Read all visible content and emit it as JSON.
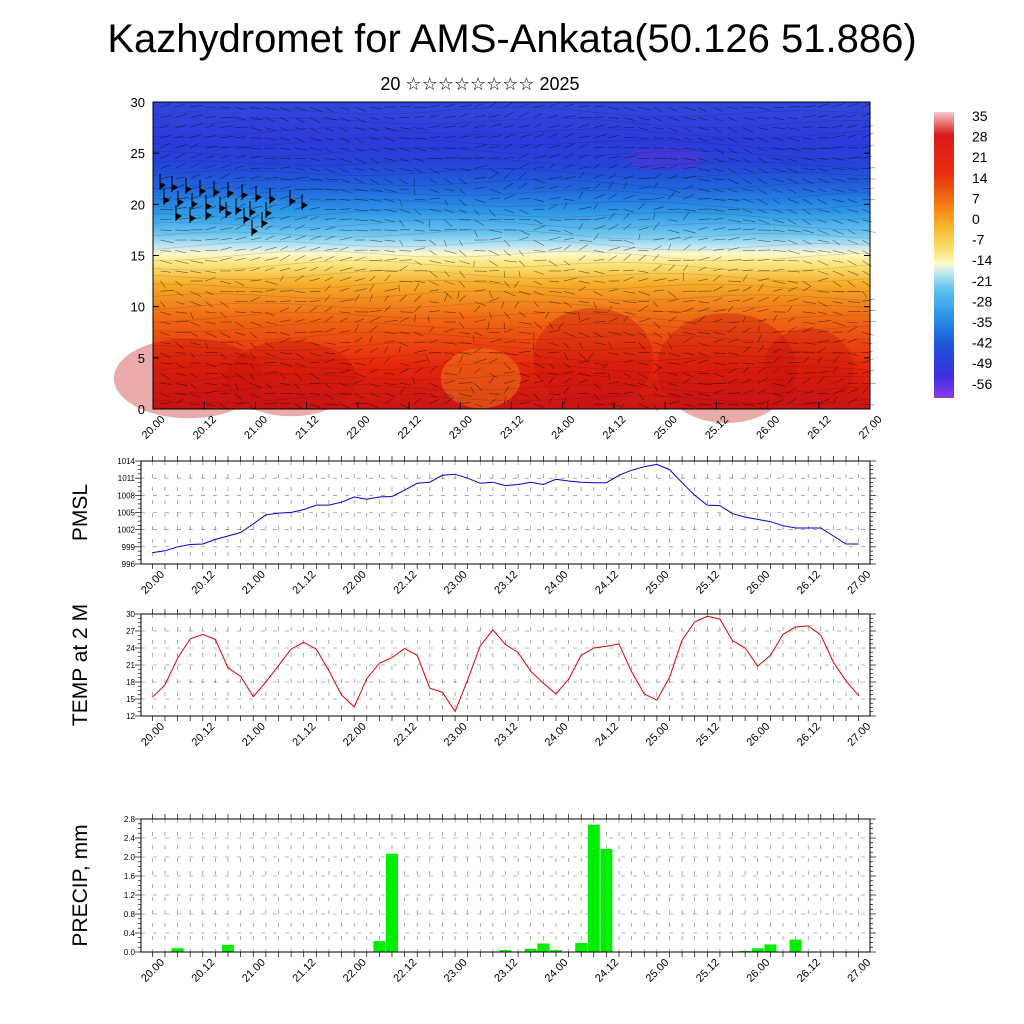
{
  "title": "Kazhydromet for AMS-Ankata(50.126 51.886)",
  "subtitle": "20 ☆☆☆☆☆☆☆☆ 2025",
  "time_labels": [
    "20.00",
    "20.12",
    "21.00",
    "21.12",
    "22.00",
    "22.12",
    "23.00",
    "23.12",
    "24.00",
    "24.12",
    "25.00",
    "25.12",
    "26.00",
    "26.12",
    "27.00"
  ],
  "chart_data": [
    {
      "id": "cross-section",
      "type": "heatmap",
      "description_of_layers": "filled contours with overlaid wind barbs",
      "ylim": [
        0,
        30
      ],
      "yticks": [
        0,
        5,
        10,
        15,
        20,
        25,
        30
      ],
      "colorbar": {
        "labels": [
          "35",
          "28",
          "21",
          "14",
          "7",
          "0",
          "-7",
          "-14",
          "-21",
          "-28",
          "-35",
          "-42",
          "-49",
          "-56"
        ],
        "colors": [
          "#f4b8b8",
          "#d31a1a",
          "#e22a10",
          "#f05a12",
          "#f59a1c",
          "#fbd646",
          "#fff6a0",
          "#c9e8f3",
          "#5ec4ee",
          "#249ae6",
          "#1d6fd9",
          "#2346d6",
          "#3a2ddb",
          "#8a3ce8"
        ]
      },
      "time_range": [
        20.0,
        27.0
      ]
    },
    {
      "id": "pmsl",
      "type": "line",
      "ylabel": "PMSL",
      "ylim": [
        996,
        1014
      ],
      "yticks": [
        "996",
        "999",
        "1002",
        "1005",
        "1008",
        "1011",
        "1014"
      ],
      "color": "#0000cc",
      "series": [
        {
          "x": [
            20.0,
            20.125,
            20.25,
            20.375,
            20.5,
            20.625,
            20.75,
            20.875,
            21.0,
            21.125,
            21.25,
            21.375,
            21.5,
            21.625,
            21.75,
            21.875,
            22.0,
            22.125,
            22.25,
            22.375,
            22.5,
            22.625,
            22.75,
            22.875,
            23.0,
            23.125,
            23.25,
            23.375,
            23.5,
            23.625,
            23.75,
            23.875,
            24.0,
            24.125,
            24.25,
            24.375,
            24.5,
            24.625,
            24.75,
            24.875,
            25.0,
            25.125,
            25.25,
            25.375,
            25.5,
            25.625,
            25.75,
            25.875,
            26.0,
            26.125,
            26.25,
            26.375,
            26.5,
            26.625,
            26.75,
            26.875,
            27.0
          ],
          "values": [
            998,
            998.3,
            999,
            999.4,
            999.5,
            1000.3,
            1000.9,
            1001.5,
            1003,
            1004.6,
            1004.9,
            1005,
            1005.5,
            1006.3,
            1006.3,
            1006.8,
            1007.7,
            1007.3,
            1007.7,
            1007.8,
            1008.9,
            1010.1,
            1010.3,
            1011.5,
            1011.7,
            1011,
            1010.1,
            1010.3,
            1009.7,
            1009.9,
            1010.3,
            1009.9,
            1010.8,
            1010.5,
            1010.3,
            1010.2,
            1010.2,
            1011.5,
            1012.4,
            1013,
            1013.4,
            1012.5,
            1010.2,
            1008,
            1006.3,
            1006.2,
            1004.8,
            1004.2,
            1003.8,
            1003.4,
            1002.7,
            1002.3,
            1002.3,
            1002.3,
            1000.9,
            999.5,
            999.5
          ]
        }
      ]
    },
    {
      "id": "temp2m",
      "type": "line",
      "ylabel": "TEMP at 2 M",
      "ylim": [
        12,
        30
      ],
      "yticks": [
        "12",
        "15",
        "18",
        "21",
        "24",
        "27",
        "30"
      ],
      "color": "#dd0000",
      "series": [
        {
          "x": [
            20.0,
            20.125,
            20.25,
            20.375,
            20.5,
            20.625,
            20.75,
            20.875,
            21.0,
            21.125,
            21.25,
            21.375,
            21.5,
            21.625,
            21.75,
            21.875,
            22.0,
            22.125,
            22.25,
            22.375,
            22.5,
            22.625,
            22.75,
            22.875,
            23.0,
            23.125,
            23.25,
            23.375,
            23.5,
            23.625,
            23.75,
            23.875,
            24.0,
            24.125,
            24.25,
            24.375,
            24.5,
            24.625,
            24.75,
            24.875,
            25.0,
            25.125,
            25.25,
            25.375,
            25.5,
            25.625,
            25.75,
            25.875,
            26.0,
            26.125,
            26.25,
            26.375,
            26.5,
            26.625,
            26.75,
            26.875,
            27.0
          ],
          "values": [
            15.3,
            17.5,
            22.2,
            25.6,
            26.4,
            25.5,
            20.5,
            19,
            15.4,
            18,
            20.9,
            23.8,
            25,
            23.8,
            20,
            15.7,
            13.6,
            18.6,
            21.3,
            22.3,
            23.9,
            22.7,
            16.9,
            16.2,
            12.8,
            18.4,
            24.4,
            27.2,
            24.6,
            23.2,
            19.9,
            17.8,
            15.9,
            18.5,
            22.7,
            24,
            24.3,
            24.7,
            19.8,
            15.9,
            14.8,
            18.8,
            25.4,
            28.6,
            29.6,
            29.1,
            25.3,
            24,
            20.8,
            22.7,
            26.4,
            27.7,
            27.9,
            26.3,
            21.5,
            18.2,
            15.6
          ]
        }
      ]
    },
    {
      "id": "precip",
      "type": "bar",
      "ylabel": "PRECIP, mm",
      "ylim": [
        0,
        2.8
      ],
      "yticks": [
        "0.0",
        "0.4",
        "0.8",
        "1.2",
        "1.6",
        "2.0",
        "2.4",
        "2.8"
      ],
      "color": "#00ee00",
      "bars": [
        {
          "time": 20.25,
          "value": 0.08
        },
        {
          "time": 20.75,
          "value": 0.15
        },
        {
          "time": 22.25,
          "value": 0.23
        },
        {
          "time": 22.375,
          "value": 2.07
        },
        {
          "time": 23.5,
          "value": 0.04
        },
        {
          "time": 23.75,
          "value": 0.07
        },
        {
          "time": 23.875,
          "value": 0.18
        },
        {
          "time": 24.0,
          "value": 0.04
        },
        {
          "time": 24.25,
          "value": 0.19
        },
        {
          "time": 24.375,
          "value": 2.68
        },
        {
          "time": 24.5,
          "value": 2.17
        },
        {
          "time": 25.875,
          "value": 0.02
        },
        {
          "time": 26.0,
          "value": 0.08
        },
        {
          "time": 26.125,
          "value": 0.16
        },
        {
          "time": 26.375,
          "value": 0.26
        }
      ]
    }
  ]
}
